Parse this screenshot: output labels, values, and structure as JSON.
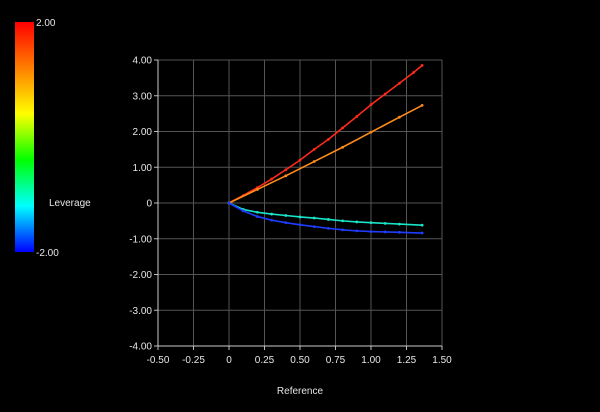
{
  "chart_data": {
    "type": "scatter",
    "title": "",
    "xlabel": "Reference",
    "ylabel": "",
    "xlim": [
      -0.5,
      1.5
    ],
    "ylim": [
      -4.0,
      4.0
    ],
    "x_ticks": [
      -0.5,
      -0.25,
      0,
      0.25,
      0.5,
      0.75,
      1.0,
      1.25,
      1.5
    ],
    "x_tick_labels": [
      "-0.50",
      "-0.25",
      "0",
      "0.25",
      "0.50",
      "0.75",
      "1.00",
      "1.25",
      "1.50"
    ],
    "y_ticks": [
      4,
      3,
      2,
      1,
      0,
      -1,
      -2,
      -3,
      -4
    ],
    "y_tick_labels": [
      "4.00",
      "3.00",
      "2.00",
      "1.00",
      "0",
      "-1.00",
      "-2.00",
      "-3.00",
      "-4.00"
    ],
    "grid": true,
    "colorbar": {
      "label": "Leverage",
      "max_label": "2.00",
      "min_label": "-2.00",
      "colors": [
        "#ff0000",
        "#ff7f00",
        "#ffff00",
        "#00ff00",
        "#00ffff",
        "#0000ff"
      ]
    },
    "series": [
      {
        "color": "#ff2a1a",
        "x": [
          0.0,
          0.1,
          0.2,
          0.3,
          0.4,
          0.5,
          0.6,
          0.7,
          0.8,
          0.9,
          1.0,
          1.1,
          1.2,
          1.3,
          1.36
        ],
        "y": [
          0.0,
          0.21,
          0.43,
          0.67,
          0.93,
          1.2,
          1.5,
          1.78,
          2.1,
          2.42,
          2.75,
          3.05,
          3.35,
          3.65,
          3.85
        ]
      },
      {
        "color": "#ff8c1a",
        "x": [
          0.0,
          0.2,
          0.4,
          0.6,
          0.8,
          1.0,
          1.2,
          1.36
        ],
        "y": [
          0.0,
          0.38,
          0.76,
          1.16,
          1.56,
          1.98,
          2.4,
          2.73
        ]
      },
      {
        "color": "#19e6c8",
        "x": [
          0.0,
          0.1,
          0.2,
          0.3,
          0.4,
          0.5,
          0.6,
          0.7,
          0.8,
          0.9,
          1.0,
          1.1,
          1.2,
          1.36
        ],
        "y": [
          0.0,
          -0.18,
          -0.26,
          -0.31,
          -0.35,
          -0.39,
          -0.42,
          -0.46,
          -0.5,
          -0.53,
          -0.55,
          -0.57,
          -0.59,
          -0.62
        ]
      },
      {
        "color": "#1f3dff",
        "x": [
          0.0,
          0.1,
          0.2,
          0.3,
          0.4,
          0.5,
          0.6,
          0.7,
          0.8,
          0.9,
          1.0,
          1.1,
          1.2,
          1.36
        ],
        "y": [
          0.0,
          -0.22,
          -0.38,
          -0.48,
          -0.55,
          -0.61,
          -0.66,
          -0.71,
          -0.75,
          -0.78,
          -0.8,
          -0.81,
          -0.82,
          -0.84
        ]
      }
    ]
  }
}
